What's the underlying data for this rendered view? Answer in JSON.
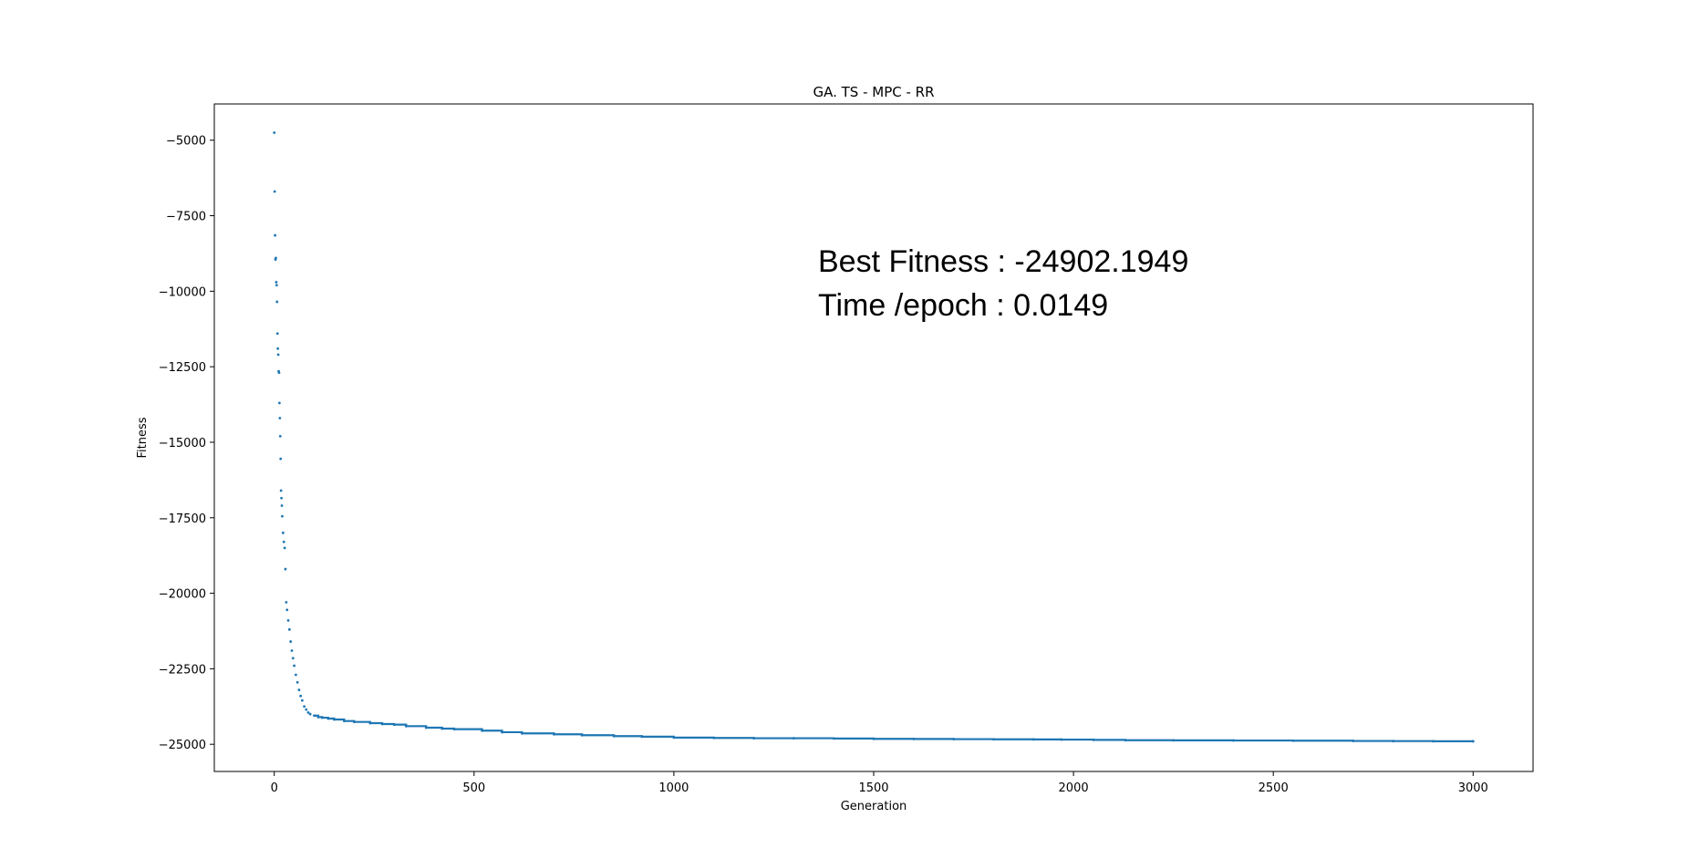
{
  "chart_data": {
    "type": "scatter",
    "title": "GA. TS - MPC - RR",
    "xlabel": "Generation",
    "ylabel": "Fitness",
    "xlim": [
      -150,
      3150
    ],
    "ylim": [
      -25900,
      -3800
    ],
    "x_ticks": [
      0,
      500,
      1000,
      1500,
      2000,
      2500,
      3000
    ],
    "x_tick_labels": [
      "0",
      "500",
      "1000",
      "1500",
      "2000",
      "2500",
      "3000"
    ],
    "y_ticks": [
      -5000,
      -7500,
      -10000,
      -12500,
      -15000,
      -17500,
      -20000,
      -22500,
      -25000
    ],
    "y_tick_labels": [
      "−5000",
      "−7500",
      "−10000",
      "−12500",
      "−15000",
      "−17500",
      "−20000",
      "−22500",
      "−25000"
    ],
    "grid": false,
    "legend": "none",
    "marker_color": "#1f77b4",
    "annotations": [
      "Best Fitness : -24902.1949",
      "Time /epoch : 0.0149"
    ],
    "series": [
      {
        "x": [
          0,
          1,
          2,
          3,
          4,
          5,
          6,
          7,
          8,
          9,
          10,
          11,
          12,
          13,
          14,
          15,
          16,
          17,
          18,
          19,
          20,
          22,
          24,
          26,
          28,
          30,
          32,
          35,
          38,
          41,
          44,
          47,
          50,
          54,
          58,
          62,
          66,
          70,
          75,
          80,
          85,
          90,
          100,
          110,
          120,
          135,
          150,
          175,
          200,
          240,
          270,
          300,
          330,
          380,
          420,
          450,
          520,
          570,
          620,
          700,
          770,
          850,
          920,
          1000,
          1100,
          1200,
          1300,
          1400,
          1500,
          1600,
          1700,
          1800,
          1900,
          1970,
          2050,
          2130,
          2250,
          2400,
          2550,
          2700,
          2800,
          2900,
          3000
        ],
        "y": [
          -4750,
          -6700,
          -8150,
          -8950,
          -8900,
          -9700,
          -9800,
          -10350,
          -11400,
          -11900,
          -12100,
          -12650,
          -12700,
          -13700,
          -14200,
          -14800,
          -15550,
          -16600,
          -16850,
          -17100,
          -17450,
          -18000,
          -18300,
          -18500,
          -19200,
          -20300,
          -20550,
          -20900,
          -21200,
          -21600,
          -21900,
          -22150,
          -22400,
          -22700,
          -22950,
          -23200,
          -23400,
          -23550,
          -23750,
          -23850,
          -23950,
          -24000,
          -24050,
          -24100,
          -24120,
          -24150,
          -24180,
          -24230,
          -24260,
          -24300,
          -24330,
          -24350,
          -24400,
          -24450,
          -24480,
          -24500,
          -24550,
          -24600,
          -24640,
          -24670,
          -24700,
          -24730,
          -24750,
          -24780,
          -24790,
          -24800,
          -24800,
          -24810,
          -24820,
          -24825,
          -24830,
          -24835,
          -24840,
          -24845,
          -24855,
          -24865,
          -24870,
          -24875,
          -24880,
          -24890,
          -24895,
          -24900,
          -24902
        ]
      }
    ]
  }
}
